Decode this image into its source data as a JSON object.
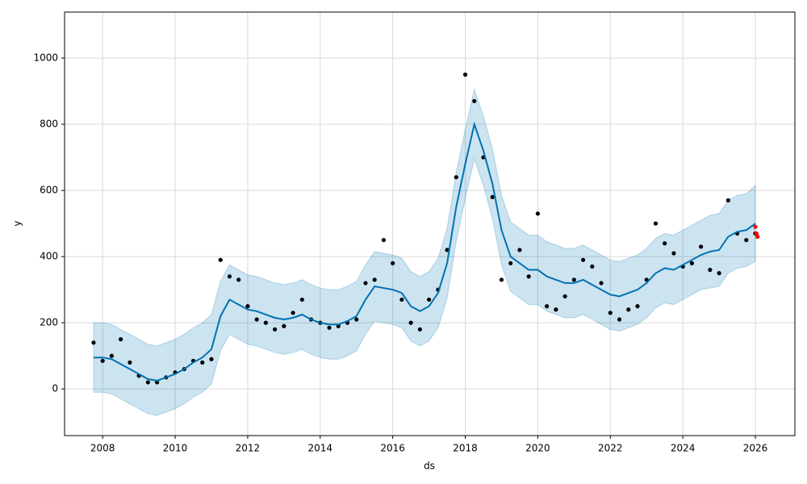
{
  "chart_data": {
    "type": "forecast",
    "xlabel": "ds",
    "ylabel": "y",
    "xlim": [
      2006.95,
      2027.09
    ],
    "ylim": [
      -141,
      1139
    ],
    "xticks": [
      2008,
      2010,
      2012,
      2014,
      2016,
      2018,
      2020,
      2022,
      2024,
      2026
    ],
    "yticks": [
      0,
      200,
      400,
      600,
      800,
      1000
    ],
    "grid": true,
    "x": [
      2007.75,
      2008.0,
      2008.25,
      2008.5,
      2008.75,
      2009.0,
      2009.25,
      2009.5,
      2009.75,
      2010.0,
      2010.25,
      2010.5,
      2010.75,
      2011.0,
      2011.25,
      2011.5,
      2011.75,
      2012.0,
      2012.25,
      2012.5,
      2012.75,
      2013.0,
      2013.25,
      2013.5,
      2013.75,
      2014.0,
      2014.25,
      2014.5,
      2014.75,
      2015.0,
      2015.25,
      2015.5,
      2015.75,
      2016.0,
      2016.25,
      2016.5,
      2016.75,
      2017.0,
      2017.25,
      2017.5,
      2017.75,
      2018.0,
      2018.25,
      2018.5,
      2018.75,
      2019.0,
      2019.25,
      2019.5,
      2019.75,
      2020.0,
      2020.25,
      2020.5,
      2020.75,
      2021.0,
      2021.25,
      2021.5,
      2021.75,
      2022.0,
      2022.25,
      2022.5,
      2022.75,
      2023.0,
      2023.25,
      2023.5,
      2023.75,
      2024.0,
      2024.25,
      2024.5,
      2024.75,
      2025.0,
      2025.25,
      2025.5,
      2025.75,
      2026.0
    ],
    "band": {
      "color": "#0072b2",
      "lower": [
        -10,
        -10,
        -15,
        -30,
        -45,
        -60,
        -75,
        -80,
        -70,
        -60,
        -45,
        -25,
        -10,
        15,
        115,
        165,
        150,
        135,
        130,
        120,
        110,
        105,
        110,
        120,
        105,
        95,
        90,
        90,
        100,
        115,
        165,
        205,
        200,
        195,
        185,
        145,
        130,
        145,
        185,
        275,
        445,
        575,
        695,
        615,
        515,
        375,
        295,
        275,
        255,
        255,
        235,
        225,
        215,
        215,
        225,
        210,
        195,
        180,
        175,
        185,
        195,
        215,
        245,
        260,
        255,
        270,
        285,
        300,
        305,
        310,
        350,
        365,
        370,
        385
      ],
      "upper": [
        200,
        200,
        195,
        180,
        165,
        150,
        135,
        130,
        140,
        150,
        165,
        185,
        200,
        225,
        325,
        375,
        360,
        345,
        340,
        330,
        320,
        315,
        320,
        330,
        315,
        305,
        300,
        300,
        310,
        325,
        375,
        415,
        410,
        405,
        395,
        355,
        340,
        355,
        395,
        485,
        655,
        785,
        905,
        825,
        725,
        585,
        505,
        485,
        465,
        465,
        445,
        435,
        425,
        425,
        435,
        420,
        405,
        390,
        385,
        395,
        405,
        425,
        455,
        470,
        465,
        480,
        495,
        510,
        525,
        530,
        570,
        585,
        590,
        615
      ]
    },
    "series": [
      {
        "style": "points",
        "color": "#000000",
        "values": [
          140,
          85,
          100,
          150,
          80,
          40,
          20,
          20,
          35,
          50,
          60,
          85,
          80,
          90,
          390,
          340,
          330,
          250,
          210,
          200,
          180,
          190,
          230,
          270,
          210,
          200,
          185,
          190,
          200,
          210,
          320,
          330,
          450,
          380,
          270,
          200,
          180,
          270,
          300,
          420,
          640,
          950,
          870,
          700,
          580,
          330,
          380,
          420,
          340,
          530,
          250,
          240,
          280,
          330,
          390,
          370,
          320,
          230,
          210,
          240,
          250,
          330,
          500,
          440,
          410,
          370,
          380,
          430,
          360,
          350,
          570,
          470,
          450,
          470
        ]
      },
      {
        "style": "line",
        "color": "#0072b2",
        "values": [
          95,
          95,
          90,
          75,
          60,
          45,
          30,
          25,
          35,
          45,
          60,
          80,
          95,
          120,
          220,
          270,
          255,
          240,
          235,
          225,
          215,
          210,
          215,
          225,
          210,
          200,
          195,
          195,
          205,
          220,
          270,
          310,
          305,
          300,
          290,
          250,
          235,
          250,
          290,
          380,
          550,
          680,
          800,
          720,
          620,
          480,
          400,
          380,
          360,
          360,
          340,
          330,
          320,
          320,
          330,
          315,
          300,
          285,
          280,
          290,
          300,
          320,
          350,
          365,
          360,
          375,
          390,
          405,
          415,
          420,
          460,
          475,
          480,
          500
        ]
      },
      {
        "style": "points",
        "color": "#ff0000",
        "x": [
          2026.0,
          2026.03,
          2026.06
        ],
        "values": [
          490,
          470,
          460
        ]
      }
    ]
  }
}
